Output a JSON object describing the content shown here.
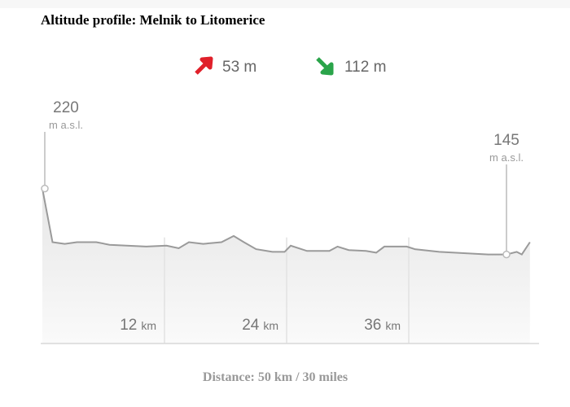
{
  "chart_data": {
    "type": "area",
    "title": "Altitude profile: Melnik to Litomerice",
    "ascent": "53 m",
    "descent": "112 m",
    "y_unit": "m a.s.l.",
    "x_unit": "km",
    "x_label": "Distance: 50 km / 30 miles",
    "x": [
      0,
      1.0,
      2.2,
      3.4,
      5.3,
      6.6,
      10.2,
      12.2,
      13.4,
      14.4,
      15.8,
      17.6,
      18.8,
      19.8,
      21.0,
      22.6,
      23.8,
      24.4,
      26.0,
      28.2,
      29.0,
      30.1,
      31.8,
      32.8,
      33.6,
      35.8,
      36.6,
      39.0,
      43.8,
      45.6,
      46.6,
      47.1,
      47.9
    ],
    "values": [
      220,
      159,
      157,
      159,
      159,
      156,
      154,
      155,
      152,
      159,
      157,
      159,
      166,
      159,
      151,
      148,
      148,
      155,
      149,
      149,
      154,
      150,
      149,
      147,
      154,
      154,
      151,
      148,
      145,
      145,
      148,
      145,
      159
    ],
    "color": "#9a9a9a",
    "xlim": [
      0,
      48
    ],
    "ylim": [
      40,
      240
    ],
    "xticks": [
      12,
      24,
      36
    ],
    "grid": true
  }
}
